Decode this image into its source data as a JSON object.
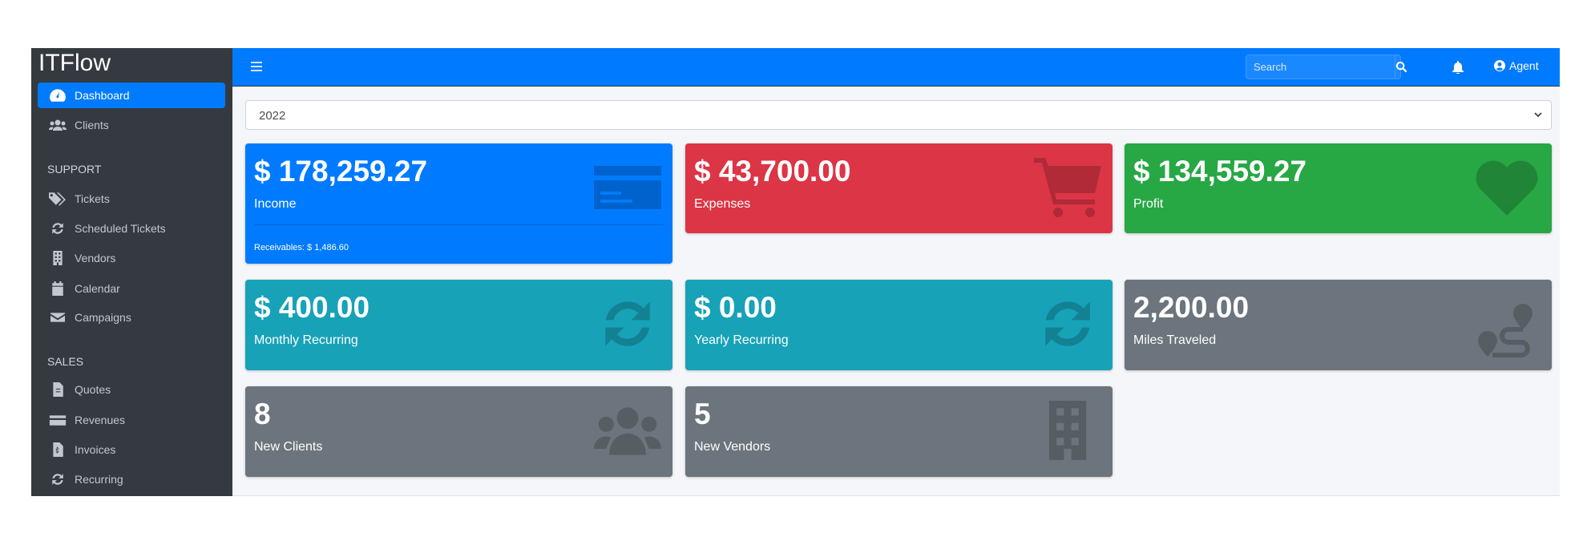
{
  "app": {
    "title": "ITFlow"
  },
  "sidebar": {
    "items": [
      {
        "label": "Dashboard",
        "icon": "tachometer-icon",
        "active": true
      },
      {
        "label": "Clients",
        "icon": "users-icon"
      }
    ],
    "sections": [
      {
        "header": "SUPPORT",
        "items": [
          {
            "label": "Tickets",
            "icon": "tags-icon"
          },
          {
            "label": "Scheduled Tickets",
            "icon": "sync-icon"
          },
          {
            "label": "Vendors",
            "icon": "building-icon"
          },
          {
            "label": "Calendar",
            "icon": "calendar-icon"
          },
          {
            "label": "Campaigns",
            "icon": "envelope-icon"
          }
        ]
      },
      {
        "header": "SALES",
        "items": [
          {
            "label": "Quotes",
            "icon": "file-icon"
          },
          {
            "label": "Revenues",
            "icon": "credit-card-icon"
          },
          {
            "label": "Invoices",
            "icon": "file-invoice-icon"
          },
          {
            "label": "Recurring",
            "icon": "sync-icon"
          }
        ]
      }
    ]
  },
  "topbar": {
    "search_placeholder": "Search",
    "user": "Agent"
  },
  "filter": {
    "year": "2022"
  },
  "cards": [
    {
      "value": "$ 178,259.27",
      "label": "Income",
      "footer": "Receivables: $ 1,486.60",
      "color": "#007bff",
      "icon": "credit-card-icon"
    },
    {
      "value": "$ 43,700.00",
      "label": "Expenses",
      "color": "#dc3545",
      "icon": "shopping-cart-icon"
    },
    {
      "value": "$ 134,559.27",
      "label": "Profit",
      "color": "#28a745",
      "icon": "heart-icon"
    },
    {
      "value": "$ 400.00",
      "label": "Monthly Recurring",
      "color": "#17a2b8",
      "icon": "sync-icon"
    },
    {
      "value": "$ 0.00",
      "label": "Yearly Recurring",
      "color": "#17a2b8",
      "icon": "sync-icon"
    },
    {
      "value": "2,200.00",
      "label": "Miles Traveled",
      "color": "#6c757d",
      "icon": "route-icon"
    },
    {
      "value": "8",
      "label": "New Clients",
      "color": "#6c757d",
      "icon": "users-icon"
    },
    {
      "value": "5",
      "label": "New Vendors",
      "color": "#6c757d",
      "icon": "building-icon"
    }
  ]
}
